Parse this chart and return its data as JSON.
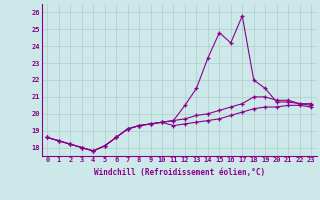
{
  "xlabel": "Windchill (Refroidissement éolien,°C)",
  "bg_color": "#cce8e8",
  "line_color": "#8b008b",
  "grid_color": "#b0cccc",
  "xlim": [
    -0.5,
    23.5
  ],
  "ylim": [
    17.5,
    26.5
  ],
  "yticks": [
    18,
    19,
    20,
    21,
    22,
    23,
    24,
    25,
    26
  ],
  "xticks": [
    0,
    1,
    2,
    3,
    4,
    5,
    6,
    7,
    8,
    9,
    10,
    11,
    12,
    13,
    14,
    15,
    16,
    17,
    18,
    19,
    20,
    21,
    22,
    23
  ],
  "series1_x": [
    0,
    1,
    2,
    3,
    4,
    5,
    6,
    7,
    8,
    9,
    10,
    11,
    12,
    13,
    14,
    15,
    16,
    17,
    18,
    19,
    20,
    21,
    22,
    23
  ],
  "series1_y": [
    18.6,
    18.4,
    18.2,
    18.0,
    17.8,
    18.1,
    18.6,
    19.1,
    19.3,
    19.4,
    19.5,
    19.6,
    20.5,
    21.5,
    23.3,
    24.8,
    24.2,
    25.8,
    22.0,
    21.5,
    20.7,
    20.7,
    20.6,
    20.6
  ],
  "series2_x": [
    0,
    1,
    2,
    3,
    4,
    5,
    6,
    7,
    8,
    9,
    10,
    11,
    12,
    13,
    14,
    15,
    16,
    17,
    18,
    19,
    20,
    21,
    22,
    23
  ],
  "series2_y": [
    18.6,
    18.4,
    18.2,
    18.0,
    17.8,
    18.1,
    18.6,
    19.1,
    19.3,
    19.4,
    19.5,
    19.6,
    19.7,
    19.9,
    20.0,
    20.2,
    20.4,
    20.6,
    21.0,
    21.0,
    20.8,
    20.8,
    20.6,
    20.5
  ],
  "series3_x": [
    0,
    1,
    2,
    3,
    4,
    5,
    6,
    7,
    8,
    9,
    10,
    11,
    12,
    13,
    14,
    15,
    16,
    17,
    18,
    19,
    20,
    21,
    22,
    23
  ],
  "series3_y": [
    18.6,
    18.4,
    18.2,
    18.0,
    17.8,
    18.1,
    18.6,
    19.1,
    19.3,
    19.4,
    19.5,
    19.3,
    19.4,
    19.5,
    19.6,
    19.7,
    19.9,
    20.1,
    20.3,
    20.4,
    20.4,
    20.5,
    20.5,
    20.4
  ],
  "tick_fontsize": 5.0,
  "xlabel_fontsize": 5.5
}
